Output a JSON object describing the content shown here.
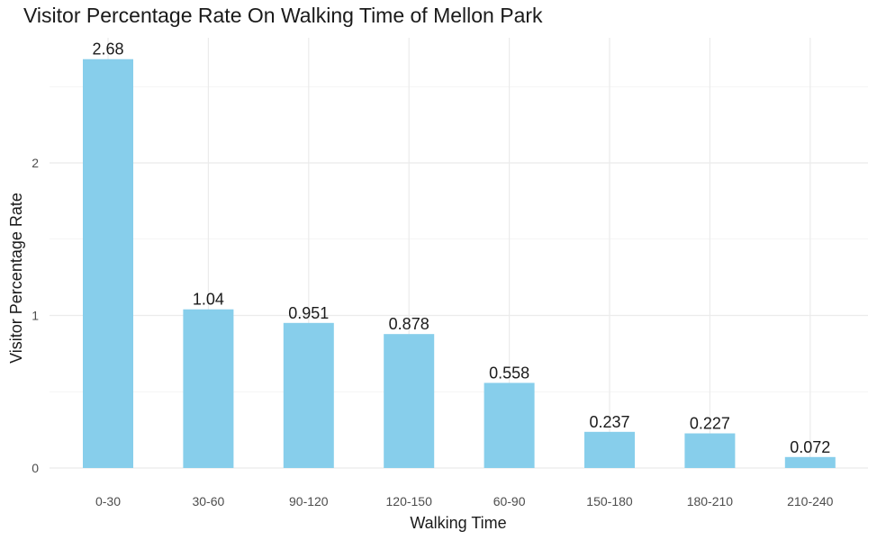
{
  "chart_data": {
    "type": "bar",
    "title": "Visitor Percentage Rate On Walking Time of Mellon Park",
    "xlabel": "Walking Time",
    "ylabel": "Visitor Percentage Rate",
    "categories": [
      "0-30",
      "30-60",
      "90-120",
      "120-150",
      "60-90",
      "150-180",
      "180-210",
      "210-240"
    ],
    "values": [
      2.68,
      1.04,
      0.951,
      0.878,
      0.558,
      0.237,
      0.227,
      0.072
    ],
    "data_labels": [
      "2.68",
      "1.04",
      "0.951",
      "0.878",
      "0.558",
      "0.237",
      "0.227",
      "0.072"
    ],
    "y_ticks": [
      0,
      1,
      2
    ],
    "ylim": [
      0,
      2.8
    ],
    "grid": true,
    "bar_color": "#87CEEB",
    "grid_color": "#ebebeb"
  }
}
